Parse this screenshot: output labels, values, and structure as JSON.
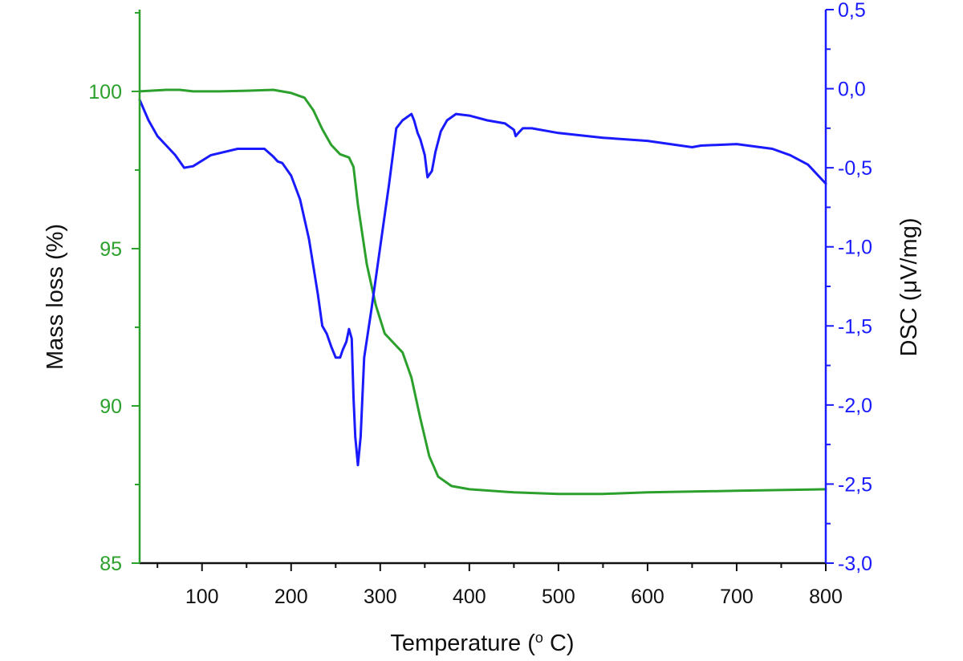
{
  "chart_data": {
    "type": "line",
    "xlabel": "Temperature (",
    "xlabel_sup": "o",
    "xlabel_unit": " C)",
    "ylabel_left": "Mass loss (%)",
    "ylabel_right": "DSC (μV/mg)",
    "xlim": [
      30,
      800
    ],
    "ylim_left": [
      85,
      102.6
    ],
    "ylim_right": [
      -3.0,
      0.5
    ],
    "x_ticks": [
      100,
      200,
      300,
      400,
      500,
      600,
      700,
      800
    ],
    "x_tick_labels": [
      "100",
      "200",
      "300",
      "400",
      "500",
      "600",
      "700",
      "800"
    ],
    "y_left_ticks": [
      85,
      90,
      95,
      100
    ],
    "y_left_tick_labels": [
      "85",
      "90",
      "95",
      "100"
    ],
    "y_right_ticks": [
      -3.0,
      -2.5,
      -2.0,
      -1.5,
      -1.0,
      -0.5,
      0.0,
      0.5
    ],
    "y_right_tick_labels": [
      "-3,0",
      "-2,5",
      "-2,0",
      "-1,5",
      "-1,0",
      "-0,5",
      "0,0",
      "0,5"
    ],
    "colors": {
      "mass": "#2ca02c",
      "dsc": "#1a1aff",
      "axis": "#111111"
    },
    "series": [
      {
        "name": "Mass loss",
        "axis": "left",
        "x": [
          30,
          60,
          75,
          90,
          120,
          150,
          180,
          200,
          215,
          225,
          235,
          245,
          255,
          265,
          270,
          275,
          285,
          295,
          305,
          315,
          325,
          335,
          345,
          355,
          365,
          380,
          400,
          450,
          500,
          550,
          600,
          700,
          800
        ],
        "y": [
          100,
          100.05,
          100.05,
          100,
          100,
          100.02,
          100.05,
          99.95,
          99.8,
          99.4,
          98.8,
          98.3,
          98.0,
          97.9,
          97.6,
          96.4,
          94.5,
          93.2,
          92.3,
          92.0,
          91.7,
          90.9,
          89.6,
          88.4,
          87.75,
          87.45,
          87.35,
          87.25,
          87.2,
          87.2,
          87.25,
          87.3,
          87.35
        ]
      },
      {
        "name": "DSC",
        "axis": "right",
        "x": [
          30,
          40,
          50,
          60,
          70,
          80,
          90,
          110,
          140,
          170,
          180,
          185,
          190,
          200,
          210,
          220,
          230,
          235,
          240,
          245,
          250,
          255,
          258,
          262,
          265,
          268,
          270,
          272,
          275,
          278,
          282,
          290,
          300,
          310,
          318,
          325,
          330,
          335,
          338,
          342,
          345,
          350,
          353,
          358,
          362,
          368,
          375,
          385,
          400,
          420,
          440,
          450,
          452,
          455,
          460,
          470,
          500,
          550,
          600,
          650,
          660,
          700,
          740,
          760,
          780,
          800
        ],
        "y": [
          -0.07,
          -0.2,
          -0.3,
          -0.36,
          -0.42,
          -0.5,
          -0.49,
          -0.42,
          -0.38,
          -0.38,
          -0.43,
          -0.46,
          -0.47,
          -0.55,
          -0.7,
          -0.95,
          -1.3,
          -1.5,
          -1.55,
          -1.63,
          -1.7,
          -1.7,
          -1.65,
          -1.6,
          -1.52,
          -1.58,
          -1.95,
          -2.2,
          -2.38,
          -2.2,
          -1.7,
          -1.4,
          -1.0,
          -0.6,
          -0.25,
          -0.2,
          -0.18,
          -0.16,
          -0.2,
          -0.28,
          -0.32,
          -0.42,
          -0.56,
          -0.52,
          -0.4,
          -0.27,
          -0.2,
          -0.16,
          -0.17,
          -0.2,
          -0.22,
          -0.26,
          -0.3,
          -0.28,
          -0.25,
          -0.25,
          -0.28,
          -0.31,
          -0.33,
          -0.37,
          -0.36,
          -0.35,
          -0.38,
          -0.42,
          -0.48,
          -0.6
        ]
      }
    ]
  }
}
